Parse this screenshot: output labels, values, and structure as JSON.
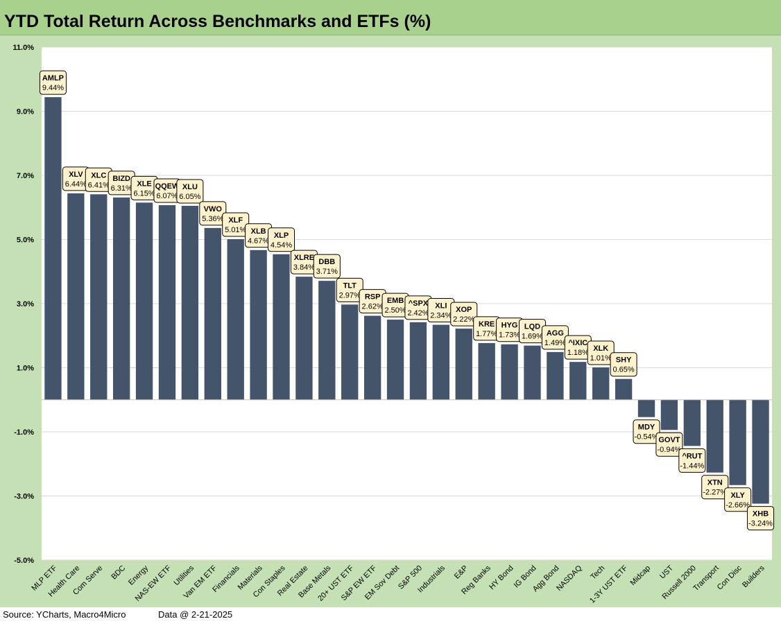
{
  "title": "YTD Total Return Across Benchmarks and ETFs (%)",
  "footer": {
    "source": "Source: YCharts, Macro4Micro",
    "date_note": "Data @ 2-21-2025"
  },
  "colors": {
    "bar": "#44546a",
    "frame": "#c5e0b4",
    "title_bar": "#a9d18e",
    "label_box": "#fff2cc"
  },
  "chart_data": {
    "type": "bar",
    "title": "YTD Total Return Across Benchmarks and ETFs (%)",
    "xlabel": "",
    "ylabel": "",
    "ylim": [
      -5,
      11
    ],
    "yticks": [
      11,
      9,
      7,
      5,
      3,
      1,
      -1,
      -3,
      -5
    ],
    "ytick_labels": [
      "11.0%",
      "9.0%",
      "7.0%",
      "5.0%",
      "3.0%",
      "1.0%",
      "-1.0%",
      "-3.0%",
      "-5.0%"
    ],
    "grid": true,
    "legend": "none",
    "categories": [
      "MLP ETF",
      "Health Care",
      "Com Serve",
      "BDC",
      "Energy",
      "NAS-EW ETF",
      "Utilities",
      "Van EM ETF",
      "Financials",
      "Materials",
      "Con Staples",
      "Real Estate",
      "Base Metals",
      "20+ UST ETF",
      "S&P EW ETF",
      "EM Sov Debt",
      "S&P 500",
      "Industrials",
      "E&P",
      "Reg Banks",
      "HY Bond",
      "IG Bond",
      "Agg Bond",
      "NASDAQ",
      "Tech",
      "1-3Y UST ETF",
      "Midcap",
      "UST",
      "Russell 2000",
      "Transport",
      "Con Disc",
      "Builders"
    ],
    "tickers": [
      "AMLP",
      "XLV",
      "XLC",
      "BIZD",
      "XLE",
      "QQEW",
      "XLU",
      "VWO",
      "XLF",
      "XLB",
      "XLP",
      "XLRE",
      "DBB",
      "TLT",
      "RSP",
      "EMB",
      "^SPX",
      "XLI",
      "XOP",
      "KRE",
      "HYG",
      "LQD",
      "AGG",
      "^IXIC",
      "XLK",
      "SHY",
      "MDY",
      "GOVT",
      "^RUT",
      "XTN",
      "XLY",
      "XHB"
    ],
    "value_labels": [
      "9.44%",
      "6.44%",
      "6.41%",
      "6.31%",
      "6.15%",
      "6.07%",
      "6.05%",
      "5.36%",
      "5.01%",
      "4.67%",
      "4.54%",
      "3.84%",
      "3.71%",
      "2.97%",
      "2.62%",
      "2.50%",
      "2.42%",
      "2.34%",
      "2.22%",
      "1.77%",
      "1.73%",
      "1.69%",
      "1.49%",
      "1.18%",
      "1.01%",
      "0.65%",
      "-0.54%",
      "-0.94%",
      "-1.44%",
      "-2.27%",
      "-2.66%",
      "-3.24%"
    ],
    "values": [
      9.44,
      6.44,
      6.41,
      6.31,
      6.15,
      6.07,
      6.05,
      5.36,
      5.01,
      4.67,
      4.54,
      3.84,
      3.71,
      2.97,
      2.62,
      2.5,
      2.42,
      2.34,
      2.22,
      1.77,
      1.73,
      1.69,
      1.49,
      1.18,
      1.01,
      0.65,
      -0.54,
      -0.94,
      -1.44,
      -2.27,
      -2.66,
      -3.24
    ]
  }
}
